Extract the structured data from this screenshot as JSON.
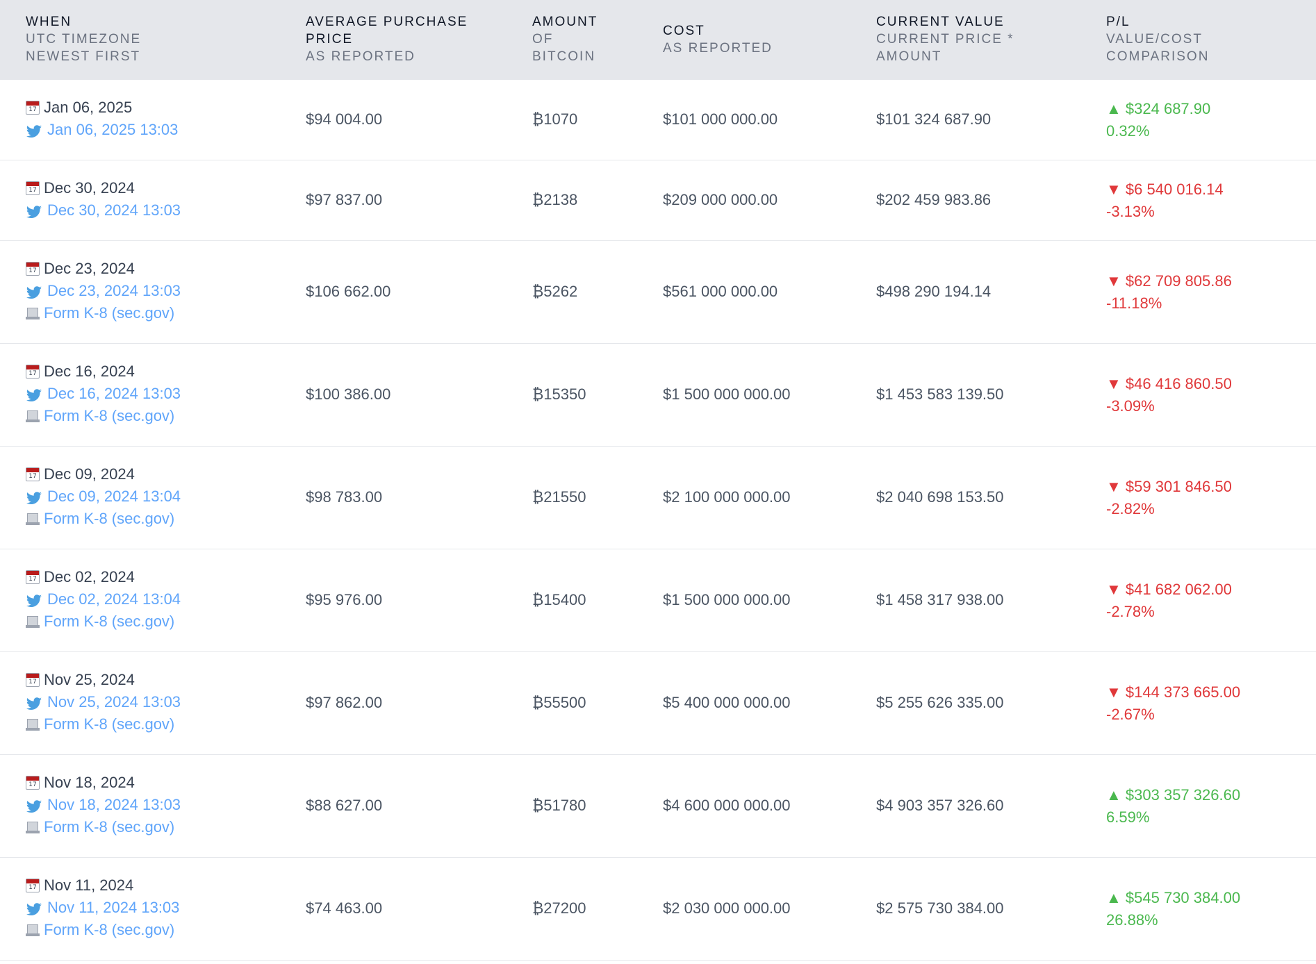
{
  "header": {
    "when": {
      "title": "WHEN",
      "subs": [
        "UTC TIMEZONE",
        "NEWEST FIRST"
      ]
    },
    "price": {
      "title": "AVERAGE PURCHASE",
      "title2": "PRICE",
      "subs": [
        "AS REPORTED"
      ]
    },
    "amount": {
      "title": "AMOUNT",
      "subs": [
        "OF",
        "BITCOIN"
      ]
    },
    "cost": {
      "title": "COST",
      "subs": [
        "AS REPORTED"
      ]
    },
    "value": {
      "title": "CURRENT VALUE",
      "subs": [
        "CURRENT PRICE *",
        "AMOUNT"
      ]
    },
    "pl": {
      "title": "P/L",
      "subs": [
        "VALUE/COST",
        "COMPARISON"
      ]
    }
  },
  "icons": {
    "calendar": "calendar-icon",
    "tweet": "twitter-bird-icon",
    "form": "document-icon"
  },
  "colors": {
    "profit": "#4ab84e",
    "loss": "#e0383a",
    "link": "#60a5fa",
    "header_bg": "#e5e7eb"
  },
  "rows": [
    {
      "date": "Jan 06, 2025",
      "tweet": "Jan 06, 2025 13:03",
      "form": "",
      "price": "$94 004.00",
      "amount": "₿1070",
      "cost": "$101 000 000.00",
      "value": "$101 324 687.90",
      "pl_arrow": "▲",
      "pl_amount": "$324 687.90",
      "pl_percent": "0.32%",
      "trend": "up"
    },
    {
      "date": "Dec 30, 2024",
      "tweet": "Dec 30, 2024 13:03",
      "form": "",
      "price": "$97 837.00",
      "amount": "₿2138",
      "cost": "$209 000 000.00",
      "value": "$202 459 983.86",
      "pl_arrow": "▼",
      "pl_amount": "$6 540 016.14",
      "pl_percent": "-3.13%",
      "trend": "down"
    },
    {
      "date": "Dec 23, 2024",
      "tweet": "Dec 23, 2024 13:03",
      "form": "Form K-8 (sec.gov)",
      "price": "$106 662.00",
      "amount": "₿5262",
      "cost": "$561 000 000.00",
      "value": "$498 290 194.14",
      "pl_arrow": "▼",
      "pl_amount": "$62 709 805.86",
      "pl_percent": "-11.18%",
      "trend": "down"
    },
    {
      "date": "Dec 16, 2024",
      "tweet": "Dec 16, 2024 13:03",
      "form": "Form K-8 (sec.gov)",
      "price": "$100 386.00",
      "amount": "₿15350",
      "cost": "$1 500 000 000.00",
      "value": "$1 453 583 139.50",
      "pl_arrow": "▼",
      "pl_amount": "$46 416 860.50",
      "pl_percent": "-3.09%",
      "trend": "down"
    },
    {
      "date": "Dec 09, 2024",
      "tweet": "Dec 09, 2024 13:04",
      "form": "Form K-8 (sec.gov)",
      "price": "$98 783.00",
      "amount": "₿21550",
      "cost": "$2 100 000 000.00",
      "value": "$2 040 698 153.50",
      "pl_arrow": "▼",
      "pl_amount": "$59 301 846.50",
      "pl_percent": "-2.82%",
      "trend": "down"
    },
    {
      "date": "Dec 02, 2024",
      "tweet": "Dec 02, 2024 13:04",
      "form": "Form K-8 (sec.gov)",
      "price": "$95 976.00",
      "amount": "₿15400",
      "cost": "$1 500 000 000.00",
      "value": "$1 458 317 938.00",
      "pl_arrow": "▼",
      "pl_amount": "$41 682 062.00",
      "pl_percent": "-2.78%",
      "trend": "down"
    },
    {
      "date": "Nov 25, 2024",
      "tweet": "Nov 25, 2024 13:03",
      "form": "Form K-8 (sec.gov)",
      "price": "$97 862.00",
      "amount": "₿55500",
      "cost": "$5 400 000 000.00",
      "value": "$5 255 626 335.00",
      "pl_arrow": "▼",
      "pl_amount": "$144 373 665.00",
      "pl_percent": "-2.67%",
      "trend": "down"
    },
    {
      "date": "Nov 18, 2024",
      "tweet": "Nov 18, 2024 13:03",
      "form": "Form K-8 (sec.gov)",
      "price": "$88 627.00",
      "amount": "₿51780",
      "cost": "$4 600 000 000.00",
      "value": "$4 903 357 326.60",
      "pl_arrow": "▲",
      "pl_amount": "$303 357 326.60",
      "pl_percent": "6.59%",
      "trend": "up"
    },
    {
      "date": "Nov 11, 2024",
      "tweet": "Nov 11, 2024 13:03",
      "form": "Form K-8 (sec.gov)",
      "price": "$74 463.00",
      "amount": "₿27200",
      "cost": "$2 030 000 000.00",
      "value": "$2 575 730 384.00",
      "pl_arrow": "▲",
      "pl_amount": "$545 730 384.00",
      "pl_percent": "26.88%",
      "trend": "up"
    }
  ]
}
